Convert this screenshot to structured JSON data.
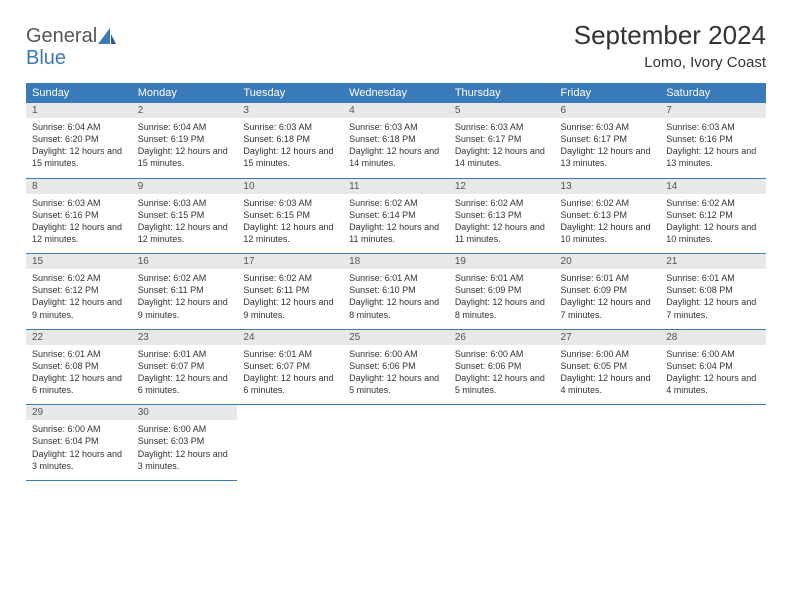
{
  "logo": {
    "text1": "General",
    "text2": "Blue"
  },
  "title": "September 2024",
  "location": "Lomo, Ivory Coast",
  "colors": {
    "header_bg": "#3a7ab8",
    "header_fg": "#ffffff",
    "daynum_bg": "#e8e8e8",
    "border": "#3a7ab8",
    "logo_blue": "#3a7ab8",
    "logo_gray": "#555555"
  },
  "daysOfWeek": [
    "Sunday",
    "Monday",
    "Tuesday",
    "Wednesday",
    "Thursday",
    "Friday",
    "Saturday"
  ],
  "weeks": [
    [
      {
        "n": "1",
        "sr": "6:04 AM",
        "ss": "6:20 PM",
        "dl": "12 hours and 15 minutes."
      },
      {
        "n": "2",
        "sr": "6:04 AM",
        "ss": "6:19 PM",
        "dl": "12 hours and 15 minutes."
      },
      {
        "n": "3",
        "sr": "6:03 AM",
        "ss": "6:18 PM",
        "dl": "12 hours and 15 minutes."
      },
      {
        "n": "4",
        "sr": "6:03 AM",
        "ss": "6:18 PM",
        "dl": "12 hours and 14 minutes."
      },
      {
        "n": "5",
        "sr": "6:03 AM",
        "ss": "6:17 PM",
        "dl": "12 hours and 14 minutes."
      },
      {
        "n": "6",
        "sr": "6:03 AM",
        "ss": "6:17 PM",
        "dl": "12 hours and 13 minutes."
      },
      {
        "n": "7",
        "sr": "6:03 AM",
        "ss": "6:16 PM",
        "dl": "12 hours and 13 minutes."
      }
    ],
    [
      {
        "n": "8",
        "sr": "6:03 AM",
        "ss": "6:16 PM",
        "dl": "12 hours and 12 minutes."
      },
      {
        "n": "9",
        "sr": "6:03 AM",
        "ss": "6:15 PM",
        "dl": "12 hours and 12 minutes."
      },
      {
        "n": "10",
        "sr": "6:03 AM",
        "ss": "6:15 PM",
        "dl": "12 hours and 12 minutes."
      },
      {
        "n": "11",
        "sr": "6:02 AM",
        "ss": "6:14 PM",
        "dl": "12 hours and 11 minutes."
      },
      {
        "n": "12",
        "sr": "6:02 AM",
        "ss": "6:13 PM",
        "dl": "12 hours and 11 minutes."
      },
      {
        "n": "13",
        "sr": "6:02 AM",
        "ss": "6:13 PM",
        "dl": "12 hours and 10 minutes."
      },
      {
        "n": "14",
        "sr": "6:02 AM",
        "ss": "6:12 PM",
        "dl": "12 hours and 10 minutes."
      }
    ],
    [
      {
        "n": "15",
        "sr": "6:02 AM",
        "ss": "6:12 PM",
        "dl": "12 hours and 9 minutes."
      },
      {
        "n": "16",
        "sr": "6:02 AM",
        "ss": "6:11 PM",
        "dl": "12 hours and 9 minutes."
      },
      {
        "n": "17",
        "sr": "6:02 AM",
        "ss": "6:11 PM",
        "dl": "12 hours and 9 minutes."
      },
      {
        "n": "18",
        "sr": "6:01 AM",
        "ss": "6:10 PM",
        "dl": "12 hours and 8 minutes."
      },
      {
        "n": "19",
        "sr": "6:01 AM",
        "ss": "6:09 PM",
        "dl": "12 hours and 8 minutes."
      },
      {
        "n": "20",
        "sr": "6:01 AM",
        "ss": "6:09 PM",
        "dl": "12 hours and 7 minutes."
      },
      {
        "n": "21",
        "sr": "6:01 AM",
        "ss": "6:08 PM",
        "dl": "12 hours and 7 minutes."
      }
    ],
    [
      {
        "n": "22",
        "sr": "6:01 AM",
        "ss": "6:08 PM",
        "dl": "12 hours and 6 minutes."
      },
      {
        "n": "23",
        "sr": "6:01 AM",
        "ss": "6:07 PM",
        "dl": "12 hours and 6 minutes."
      },
      {
        "n": "24",
        "sr": "6:01 AM",
        "ss": "6:07 PM",
        "dl": "12 hours and 6 minutes."
      },
      {
        "n": "25",
        "sr": "6:00 AM",
        "ss": "6:06 PM",
        "dl": "12 hours and 5 minutes."
      },
      {
        "n": "26",
        "sr": "6:00 AM",
        "ss": "6:06 PM",
        "dl": "12 hours and 5 minutes."
      },
      {
        "n": "27",
        "sr": "6:00 AM",
        "ss": "6:05 PM",
        "dl": "12 hours and 4 minutes."
      },
      {
        "n": "28",
        "sr": "6:00 AM",
        "ss": "6:04 PM",
        "dl": "12 hours and 4 minutes."
      }
    ],
    [
      {
        "n": "29",
        "sr": "6:00 AM",
        "ss": "6:04 PM",
        "dl": "12 hours and 3 minutes."
      },
      {
        "n": "30",
        "sr": "6:00 AM",
        "ss": "6:03 PM",
        "dl": "12 hours and 3 minutes."
      },
      null,
      null,
      null,
      null,
      null
    ]
  ],
  "labels": {
    "sunrise": "Sunrise: ",
    "sunset": "Sunset: ",
    "daylight": "Daylight: "
  }
}
